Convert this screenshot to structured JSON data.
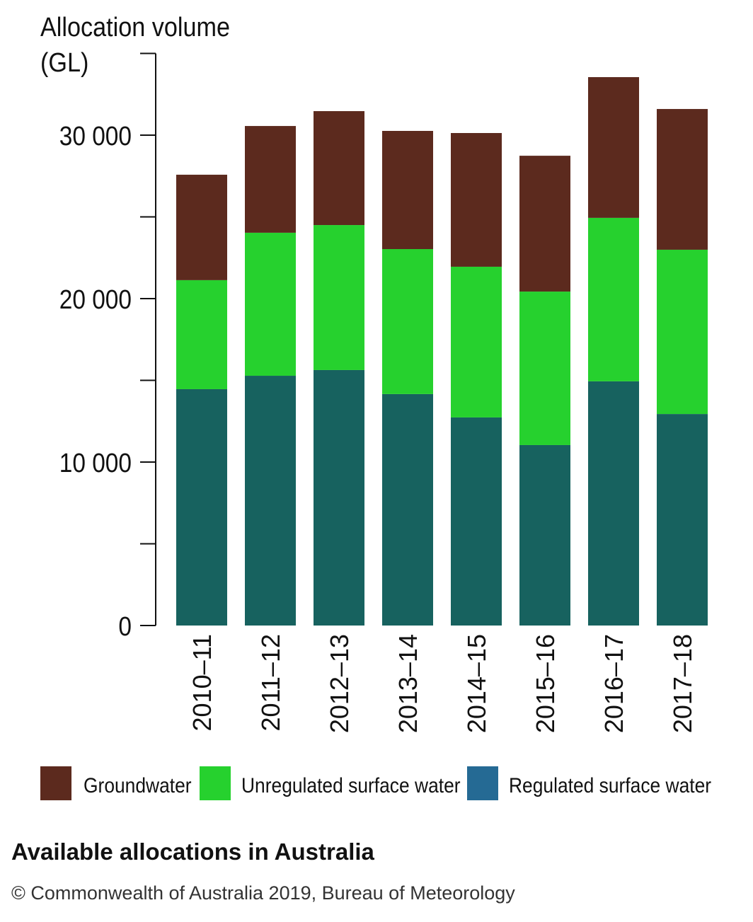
{
  "chart_data": {
    "type": "bar",
    "stacked": true,
    "title": "Available allocations in Australia",
    "ylabel": "Allocation volume (GL)",
    "ylabel_lines": [
      "Allocation volume",
      "(GL)"
    ],
    "xlabel": "",
    "ylim": [
      0,
      35000
    ],
    "yticks": [
      0,
      10000,
      20000,
      30000
    ],
    "ytick_labels": [
      "0",
      "10 000",
      "20 000",
      "30 000"
    ],
    "minor_yticks": [
      5000,
      15000,
      25000,
      35000
    ],
    "categories": [
      "2010–11",
      "2011–12",
      "2012–13",
      "2013–14",
      "2014–15",
      "2015–16",
      "2016–17",
      "2017–18"
    ],
    "series": [
      {
        "name": "Regulated surface water",
        "color": "#17625f",
        "legend_color": "#256a94",
        "values": [
          14460,
          15280,
          15630,
          14160,
          12730,
          11040,
          14940,
          12940
        ]
      },
      {
        "name": "Unregulated surface water",
        "color": "#26d12e",
        "values": [
          6670,
          8750,
          8870,
          8870,
          9220,
          9390,
          10000,
          10050
        ]
      },
      {
        "name": "Groundwater",
        "color": "#5c2a1e",
        "values": [
          6450,
          6530,
          6970,
          7230,
          8180,
          8310,
          8610,
          8610
        ]
      }
    ],
    "legend_order": [
      "Groundwater",
      "Unregulated surface water",
      "Regulated surface water"
    ],
    "legend_position": "bottom",
    "grid": false
  },
  "footer": {
    "title": "Available allocations in Australia",
    "credit": "© Commonwealth of Australia 2019, Bureau of Meteorology"
  }
}
